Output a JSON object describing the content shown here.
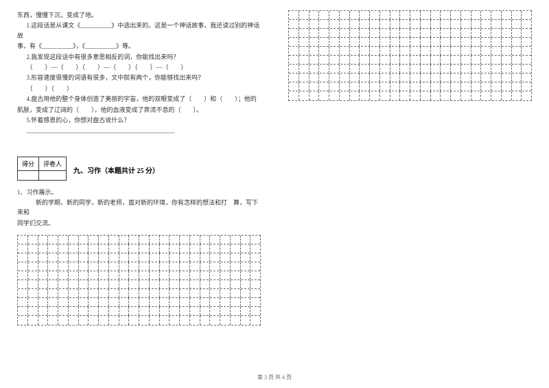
{
  "left": {
    "line0": "东西，慢慢下沉，变成了地。",
    "line1": "1.这段话是从课文《__________》中选出来的。这是一个神话故事，我还读过别的神话故",
    "line2": "事，有《__________》，《__________》等。",
    "line3": "2.我发现这段话中有很多意思相反的词，你能找出来吗？",
    "line4": "（　　）—（　　）（　　）—（　　）（　　）—（　　）",
    "line5": "3.形容速度很慢的词语有很多，文中就有两个，你能够找出来吗？",
    "line6": "（　　）（　　）",
    "line7": "4.盘古用他的整个身体创造了美丽的宇宙，他的双眼变成了（　　）和（　　）；他的",
    "line8": "肌肤，变成了辽阔的（　　），他的血液变成了奔流不息的（　　）。",
    "line9": "5.怀着感恩的心，你想对盘古说什么？",
    "line10_blank": "________________________________________________",
    "scoreHeader1": "得分",
    "scoreHeader2": "评卷人",
    "sectionTitle": "九、习作（本题共计 25 分）",
    "q1": "1、习作展示。",
    "q1_text1": "新的学期，新的同学，新的老师，面对新的环境，你有怎样的想法和打　算，写下来和",
    "q1_text2": "同学们交流。"
  },
  "footer": "第 3 页 共 4 页",
  "grid": {
    "cols": 24,
    "leftRows": 10,
    "rightRows": 10
  }
}
